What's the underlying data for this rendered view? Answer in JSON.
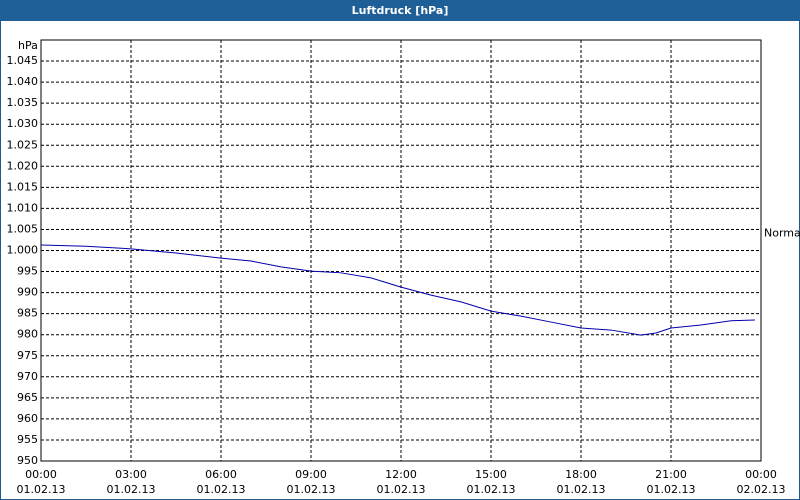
{
  "chart_data": {
    "type": "line",
    "title": "Luftdruck [hPa]",
    "y_unit": "hPa",
    "x": [
      0,
      1.5,
      3,
      4.5,
      6,
      7,
      8,
      9,
      10,
      11,
      12,
      13,
      14,
      15,
      16,
      17,
      18,
      19,
      20,
      20.5,
      21,
      22,
      23,
      23.8
    ],
    "series": [
      {
        "name": "Luftdruck",
        "color": "#0000aa",
        "values": [
          1001.3,
          1001.0,
          1000.4,
          999.4,
          998.2,
          997.5,
          996.1,
          995.1,
          994.7,
          993.5,
          991.3,
          989.4,
          987.8,
          985.6,
          984.4,
          983.0,
          981.6,
          981.1,
          979.9,
          980.4,
          981.6,
          982.3,
          983.3,
          983.5
        ]
      }
    ],
    "xlim": [
      0,
      24
    ],
    "xticks": [
      {
        "value": 0,
        "label": "00:00",
        "date": "01.02.13"
      },
      {
        "value": 3,
        "label": "03:00",
        "date": "01.02.13"
      },
      {
        "value": 6,
        "label": "06:00",
        "date": "01.02.13"
      },
      {
        "value": 9,
        "label": "09:00",
        "date": "01.02.13"
      },
      {
        "value": 12,
        "label": "12:00",
        "date": "01.02.13"
      },
      {
        "value": 15,
        "label": "15:00",
        "date": "01.02.13"
      },
      {
        "value": 18,
        "label": "18:00",
        "date": "01.02.13"
      },
      {
        "value": 21,
        "label": "21:00",
        "date": "01.02.13"
      },
      {
        "value": 24,
        "label": "00:00",
        "date": "02.02.13"
      }
    ],
    "ylim": [
      950,
      1050
    ],
    "yticks": [
      950,
      955,
      960,
      965,
      970,
      975,
      980,
      985,
      990,
      995,
      {
        "value": 1000,
        "label": "1.000"
      },
      {
        "value": 1005,
        "label": "1.005"
      },
      {
        "value": 1010,
        "label": "1.010"
      },
      {
        "value": 1015,
        "label": "1.015"
      },
      {
        "value": 1020,
        "label": "1.020"
      },
      {
        "value": 1025,
        "label": "1.025"
      },
      {
        "value": 1030,
        "label": "1.030"
      },
      {
        "value": 1035,
        "label": "1.035"
      },
      {
        "value": 1040,
        "label": "1.040"
      },
      {
        "value": 1045,
        "label": "1.045"
      }
    ],
    "annotations": [
      {
        "text": "Normal",
        "value": 1004
      }
    ],
    "grid": true
  }
}
